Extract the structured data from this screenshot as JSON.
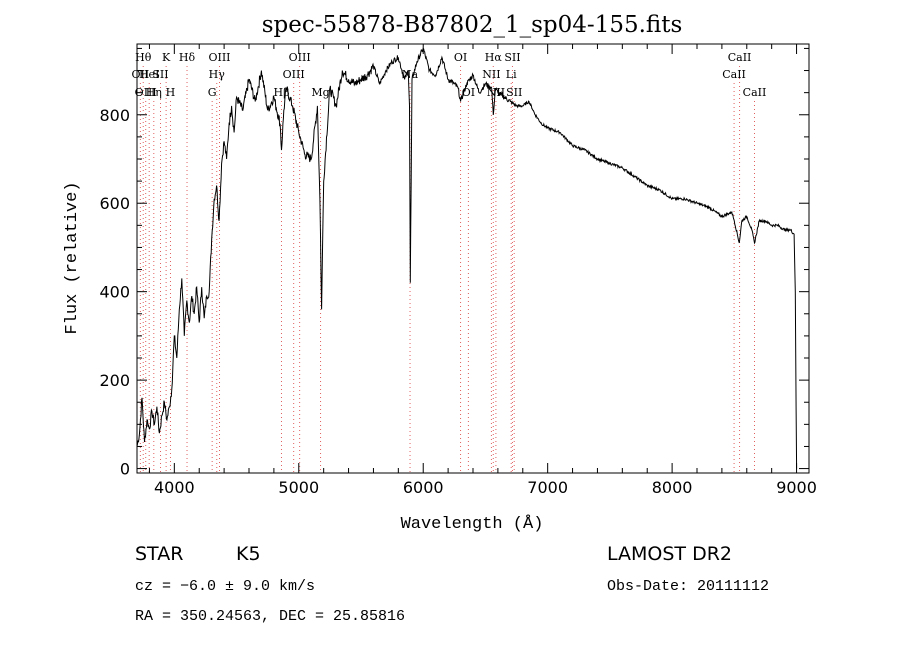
{
  "chart_data": {
    "type": "line",
    "title": "spec-55878-B87802_1_sp04-155.fits",
    "xlabel": "Wavelength (Å)",
    "ylabel": "Flux (relative)",
    "xlim": [
      3700,
      9100
    ],
    "ylim": [
      -10,
      960
    ],
    "xticks": [
      4000,
      5000,
      6000,
      7000,
      8000,
      9000
    ],
    "yticks": [
      0,
      200,
      400,
      600,
      800
    ],
    "grid": false,
    "series": [
      {
        "x": [
          3700,
          3720,
          3740,
          3760,
          3780,
          3800,
          3820,
          3840,
          3860,
          3880,
          3900,
          3920,
          3940,
          3960,
          3980,
          4000,
          4020,
          4040,
          4060,
          4080,
          4100,
          4120,
          4140,
          4160,
          4180,
          4200,
          4220,
          4240,
          4260,
          4280,
          4300,
          4320,
          4340,
          4360,
          4380,
          4400,
          4420,
          4440,
          4460,
          4480,
          4500,
          4550,
          4600,
          4650,
          4700,
          4750,
          4800,
          4850,
          4861,
          4880,
          4900,
          4950,
          5000,
          5050,
          5100,
          5150,
          5170,
          5183,
          5200,
          5250,
          5300,
          5350,
          5400,
          5450,
          5500,
          5550,
          5600,
          5650,
          5700,
          5750,
          5800,
          5850,
          5880,
          5890,
          5896,
          5910,
          5950,
          6000,
          6050,
          6100,
          6150,
          6200,
          6250,
          6280,
          6300,
          6350,
          6400,
          6450,
          6500,
          6550,
          6563,
          6580,
          6600,
          6650,
          6700,
          6750,
          6800,
          6850,
          6900,
          6950,
          7000,
          7100,
          7200,
          7300,
          7400,
          7500,
          7600,
          7700,
          7800,
          7900,
          8000,
          8100,
          8200,
          8300,
          8400,
          8480,
          8500,
          8540,
          8560,
          8600,
          8640,
          8662,
          8700,
          8750,
          8800,
          8850,
          8900,
          8950,
          8980,
          8990,
          9000
        ],
        "y": [
          50,
          80,
          160,
          60,
          110,
          90,
          130,
          100,
          140,
          80,
          120,
          150,
          110,
          140,
          180,
          300,
          250,
          360,
          430,
          300,
          380,
          330,
          390,
          350,
          410,
          330,
          410,
          340,
          390,
          400,
          520,
          610,
          640,
          560,
          690,
          740,
          700,
          780,
          820,
          760,
          840,
          810,
          880,
          830,
          900,
          810,
          840,
          780,
          720,
          810,
          860,
          820,
          760,
          710,
          700,
          820,
          610,
          360,
          650,
          860,
          820,
          900,
          880,
          870,
          880,
          890,
          910,
          870,
          900,
          920,
          930,
          880,
          900,
          820,
          420,
          880,
          920,
          950,
          900,
          890,
          930,
          880,
          870,
          860,
          830,
          870,
          890,
          850,
          870,
          860,
          800,
          860,
          850,
          840,
          830,
          820,
          820,
          830,
          800,
          780,
          770,
          760,
          730,
          720,
          700,
          690,
          680,
          660,
          640,
          630,
          610,
          610,
          600,
          590,
          570,
          580,
          560,
          510,
          560,
          570,
          540,
          510,
          560,
          560,
          550,
          550,
          540,
          540,
          530,
          400,
          0
        ]
      }
    ],
    "annotations": [
      {
        "x": 3727,
        "label": "OII",
        "row": 1
      },
      {
        "x": 3750,
        "label": "Hθ",
        "row": 0
      },
      {
        "x": 3770,
        "label": "OIII",
        "row": 2
      },
      {
        "x": 3798,
        "label": "HeI",
        "row": 1
      },
      {
        "x": 3835,
        "label": "Hη",
        "row": 2
      },
      {
        "x": 3889,
        "label": "SII",
        "row": 1
      },
      {
        "x": 3934,
        "label": "K",
        "row": 0
      },
      {
        "x": 3969,
        "label": "H",
        "row": 2
      },
      {
        "x": 4102,
        "label": "Hδ",
        "row": 0
      },
      {
        "x": 4304,
        "label": "G",
        "row": 2
      },
      {
        "x": 4341,
        "label": "Hγ",
        "row": 1
      },
      {
        "x": 4363,
        "label": "OIII",
        "row": 0
      },
      {
        "x": 4861,
        "label": "Hβ",
        "row": 2
      },
      {
        "x": 4959,
        "label": "OIII",
        "row": 1
      },
      {
        "x": 5007,
        "label": "OIII",
        "row": 0
      },
      {
        "x": 5175,
        "label": "Mg",
        "row": 2
      },
      {
        "x": 5894,
        "label": "Na",
        "row": 1
      },
      {
        "x": 6300,
        "label": "OI",
        "row": 0
      },
      {
        "x": 6363,
        "label": "OI",
        "row": 2
      },
      {
        "x": 6548,
        "label": "NII",
        "row": 1
      },
      {
        "x": 6563,
        "label": "Hα",
        "row": 0
      },
      {
        "x": 6584,
        "label": "NII",
        "row": 2
      },
      {
        "x": 6707,
        "label": "Li",
        "row": 1
      },
      {
        "x": 6717,
        "label": "SII",
        "row": 0
      },
      {
        "x": 6731,
        "label": "SII",
        "row": 2
      },
      {
        "x": 8498,
        "label": "CaII",
        "row": 1
      },
      {
        "x": 8542,
        "label": "CaII",
        "row": 0
      },
      {
        "x": 8662,
        "label": "CaII",
        "row": 2
      }
    ]
  },
  "info": {
    "class_label": "STAR",
    "subclass_label": "K5",
    "survey": "LAMOST DR2",
    "cz": "cz = −6.0 ± 9.0 km/s",
    "obs_date": "Obs-Date: 20111112",
    "coords": "RA = 350.24563, DEC =  25.85816"
  },
  "colors": {
    "line": "#000000",
    "marker": "#e06060",
    "axes": "#000000"
  }
}
